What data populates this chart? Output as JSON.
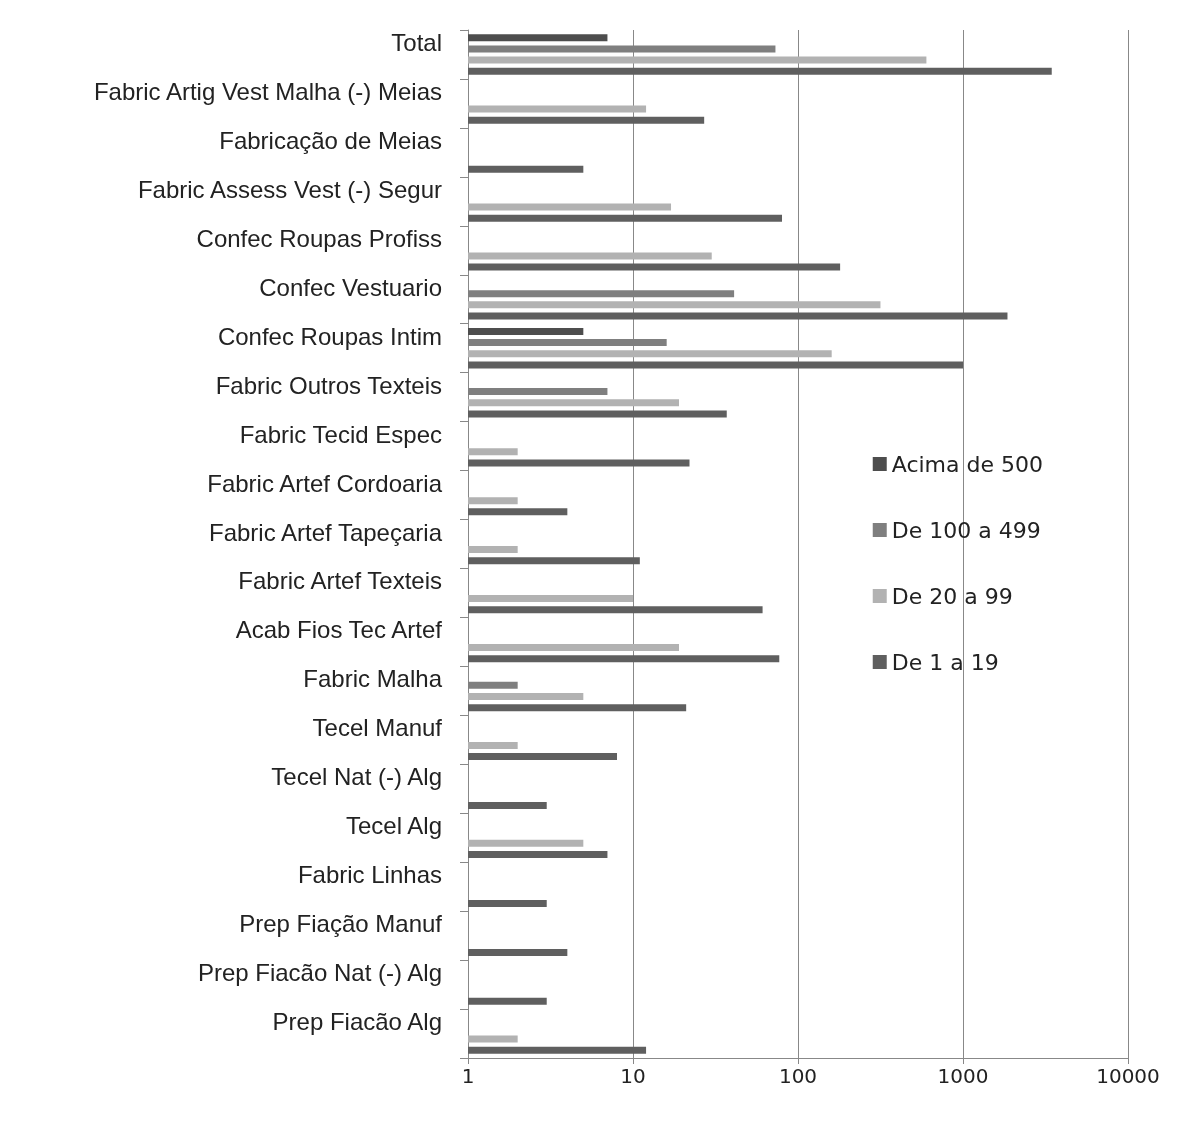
{
  "chart_data": {
    "type": "bar",
    "orientation": "horizontal",
    "log": "x",
    "categories": [
      "Total",
      "Fabric Artig Vest Malha (-) Meias",
      "Fabricação de Meias",
      "Fabric Assess Vest (-) Segur",
      "Confec Roupas Profiss",
      "Confec Vestuario",
      "Confec Roupas Intim",
      "Fabric Outros Texteis",
      "Fabric Tecid Espec",
      "Fabric Artef Cordoaria",
      "Fabric Artef Tapeçaria",
      "Fabric Artef Texteis",
      "Acab Fios Tec Artef",
      "Fabric Malha",
      "Tecel Manuf",
      "Tecel Nat (-) Alg",
      "Tecel Alg",
      "Fabric Linhas",
      "Prep Fiação Manuf",
      "Prep Fiacão Nat (-) Alg",
      "Prep Fiacão Alg"
    ],
    "series": [
      {
        "name": "Acima de 500",
        "color": "#4d4d4d",
        "values": [
          7,
          null,
          null,
          null,
          null,
          null,
          5,
          null,
          null,
          null,
          null,
          null,
          null,
          null,
          null,
          null,
          null,
          null,
          null,
          null,
          null
        ]
      },
      {
        "name": "De 100 a 499",
        "color": "#7f7f7f",
        "values": [
          73,
          null,
          null,
          null,
          null,
          41,
          16,
          7,
          null,
          null,
          null,
          null,
          null,
          2,
          null,
          null,
          null,
          null,
          null,
          null,
          null
        ]
      },
      {
        "name": "De 20 a 99",
        "color": "#b2b2b2",
        "values": [
          600,
          12,
          null,
          17,
          30,
          316,
          160,
          19,
          2,
          2,
          2,
          10,
          19,
          5,
          2,
          null,
          5,
          null,
          null,
          null,
          2
        ]
      },
      {
        "name": "De 1 a 19",
        "color": "#5f5f5f",
        "values": [
          3450,
          27,
          5,
          80,
          180,
          1860,
          1000,
          37,
          22,
          4,
          11,
          61,
          77,
          21,
          8,
          3,
          7,
          3,
          4,
          3,
          12
        ]
      }
    ],
    "xlim": [
      1,
      10000
    ],
    "xticks": [
      1,
      10,
      100,
      1000,
      10000
    ],
    "grid": "x",
    "legend": "right"
  }
}
